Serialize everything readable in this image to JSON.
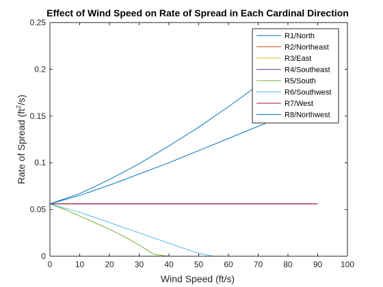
{
  "chart_data": {
    "type": "line",
    "title": "Effect of Wind Speed on Rate of Spread in Each Cardinal Direction",
    "xlabel": "Wind Speed (ft/s)",
    "ylabel_main": "Rate of Spread (ft",
    "ylabel_sup": "2",
    "ylabel_tail": "/s)",
    "xlim": [
      0,
      100
    ],
    "ylim": [
      0,
      0.25
    ],
    "xticks": [
      0,
      10,
      20,
      30,
      40,
      50,
      60,
      70,
      80,
      90,
      100
    ],
    "xtick_labels": [
      "0",
      "10",
      "20",
      "30",
      "40",
      "50",
      "60",
      "70",
      "80",
      "90",
      "100"
    ],
    "yticks": [
      0,
      0.05,
      0.1,
      0.15,
      0.2,
      0.25
    ],
    "ytick_labels": [
      "0",
      "0.05",
      "0.1",
      "0.15",
      "0.2",
      "0.25"
    ],
    "grid": false,
    "legend_position": "top-right",
    "series": [
      {
        "name": "R1/North",
        "color": "#0072BD",
        "x": [
          0,
          10,
          20,
          30,
          40,
          50,
          60,
          70,
          80,
          90
        ],
        "y": [
          0.056,
          0.067,
          0.082,
          0.099,
          0.118,
          0.138,
          0.16,
          0.183,
          0.207,
          0.232
        ]
      },
      {
        "name": "R2/Northeast",
        "color": "#D95319",
        "x": [
          0,
          10,
          20,
          30,
          40,
          50,
          60,
          70,
          80,
          90
        ],
        "y": [
          0.056,
          0.056,
          0.056,
          0.056,
          0.056,
          0.056,
          0.056,
          0.056,
          0.056,
          0.056
        ]
      },
      {
        "name": "R3/East",
        "color": "#EDB120",
        "x": [
          0,
          10,
          20,
          30,
          40,
          50,
          60,
          70,
          80,
          90
        ],
        "y": [
          0.056,
          0.056,
          0.056,
          0.056,
          0.056,
          0.056,
          0.056,
          0.056,
          0.056,
          0.056
        ]
      },
      {
        "name": "R4/Southeast",
        "color": "#7E2F8E",
        "x": [
          0,
          10,
          20,
          30,
          40,
          50,
          60,
          70,
          80,
          90
        ],
        "y": [
          0.056,
          0.056,
          0.056,
          0.056,
          0.056,
          0.056,
          0.056,
          0.056,
          0.056,
          0.056
        ]
      },
      {
        "name": "R5/South",
        "color": "#77AC30",
        "x": [
          0,
          5,
          10,
          15,
          20,
          25,
          30,
          35,
          40,
          45,
          50,
          55
        ],
        "y": [
          0.056,
          0.05,
          0.043,
          0.036,
          0.029,
          0.021,
          0.012,
          0.002,
          0.0,
          0.0,
          0.0,
          0.0
        ]
      },
      {
        "name": "R6/Southwest",
        "color": "#4DBEEE",
        "x": [
          0,
          10,
          20,
          30,
          40,
          49,
          55
        ],
        "y": [
          0.056,
          0.047,
          0.036,
          0.025,
          0.014,
          0.004,
          0.0
        ]
      },
      {
        "name": "R7/West",
        "color": "#A2142F",
        "x": [
          0,
          10,
          20,
          30,
          40,
          50,
          60,
          70,
          80,
          90
        ],
        "y": [
          0.056,
          0.056,
          0.056,
          0.056,
          0.056,
          0.056,
          0.056,
          0.056,
          0.056,
          0.056
        ]
      },
      {
        "name": "R8/Northwest",
        "color": "#0072BD",
        "x": [
          0,
          10,
          20,
          30,
          40,
          50,
          60,
          70,
          80,
          90
        ],
        "y": [
          0.056,
          0.065,
          0.076,
          0.088,
          0.1,
          0.113,
          0.126,
          0.139,
          0.152,
          0.166
        ]
      }
    ]
  }
}
